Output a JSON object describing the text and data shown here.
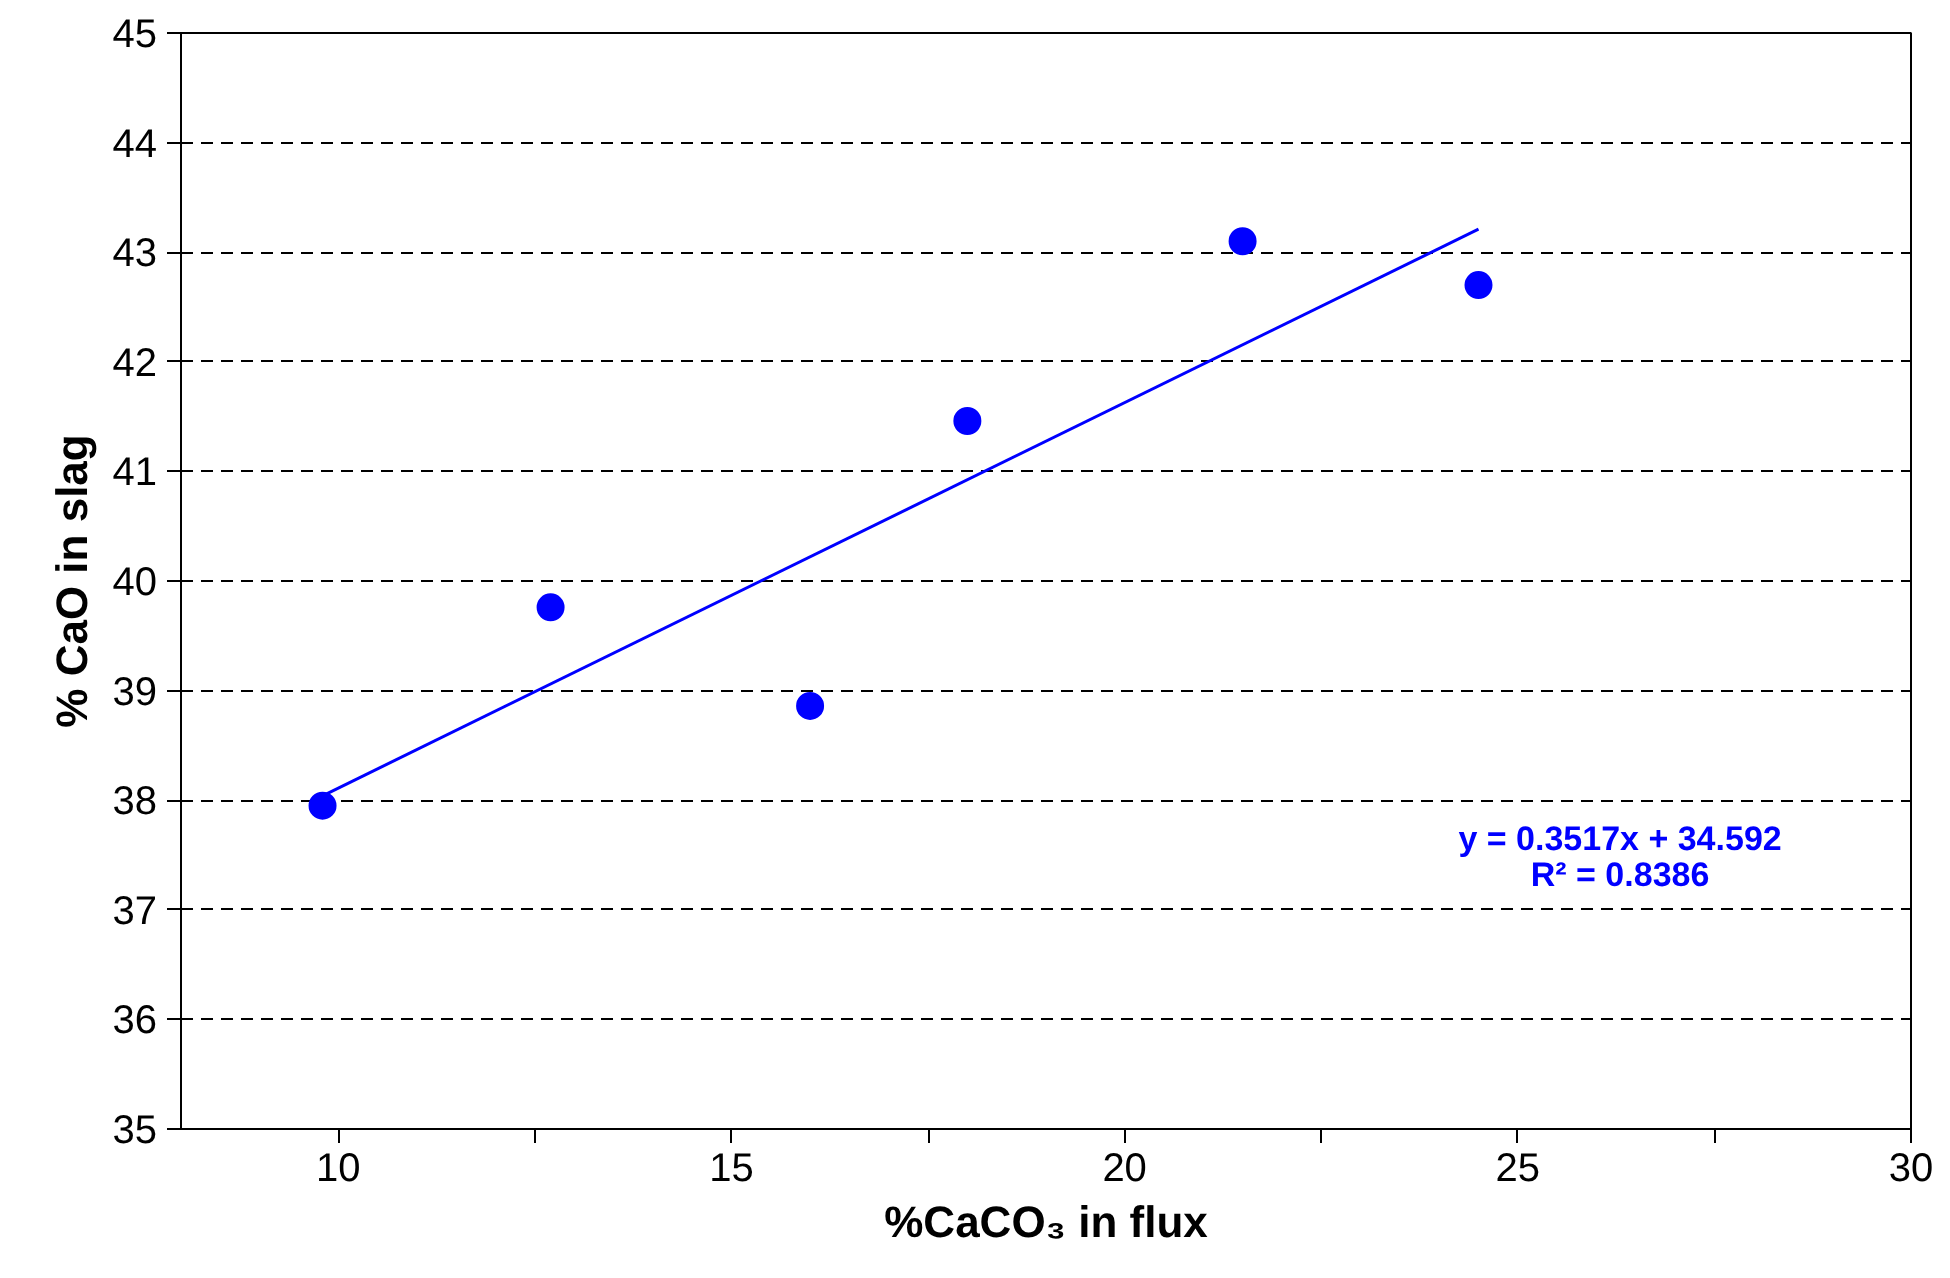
{
  "chart_data": {
    "type": "scatter",
    "xlabel": "%CaCO₃ in flux",
    "ylabel": "% CaO in slag",
    "marker": "circle",
    "grid": "y",
    "xlim": [
      8,
      30
    ],
    "xticks": [
      10,
      {
        "value": 12.5,
        "label": null
      },
      15,
      {
        "value": 17.5,
        "label": null
      },
      20,
      {
        "value": 22.5,
        "label": null
      },
      25,
      {
        "value": 27.5,
        "label": null
      },
      30
    ],
    "ylim": [
      35,
      45
    ],
    "yticks": [
      35,
      36,
      37,
      38,
      39,
      40,
      41,
      42,
      43,
      44,
      45
    ],
    "series": [
      {
        "color": "#0000ff",
        "x": [
          9.8,
          12.7,
          16.0,
          18.0,
          21.5,
          24.5
        ],
        "values": [
          37.95,
          39.76,
          38.86,
          41.46,
          43.1,
          42.7
        ]
      },
      {
        "type": "line",
        "marker": "none",
        "line_style": "solid",
        "color": "#0000ff",
        "x": [
          9.8,
          24.5
        ],
        "values": [
          38.04,
          43.21
        ]
      }
    ],
    "annotations": [
      "y = 0.3517x + 34.592",
      "R² = 0.8386"
    ]
  }
}
